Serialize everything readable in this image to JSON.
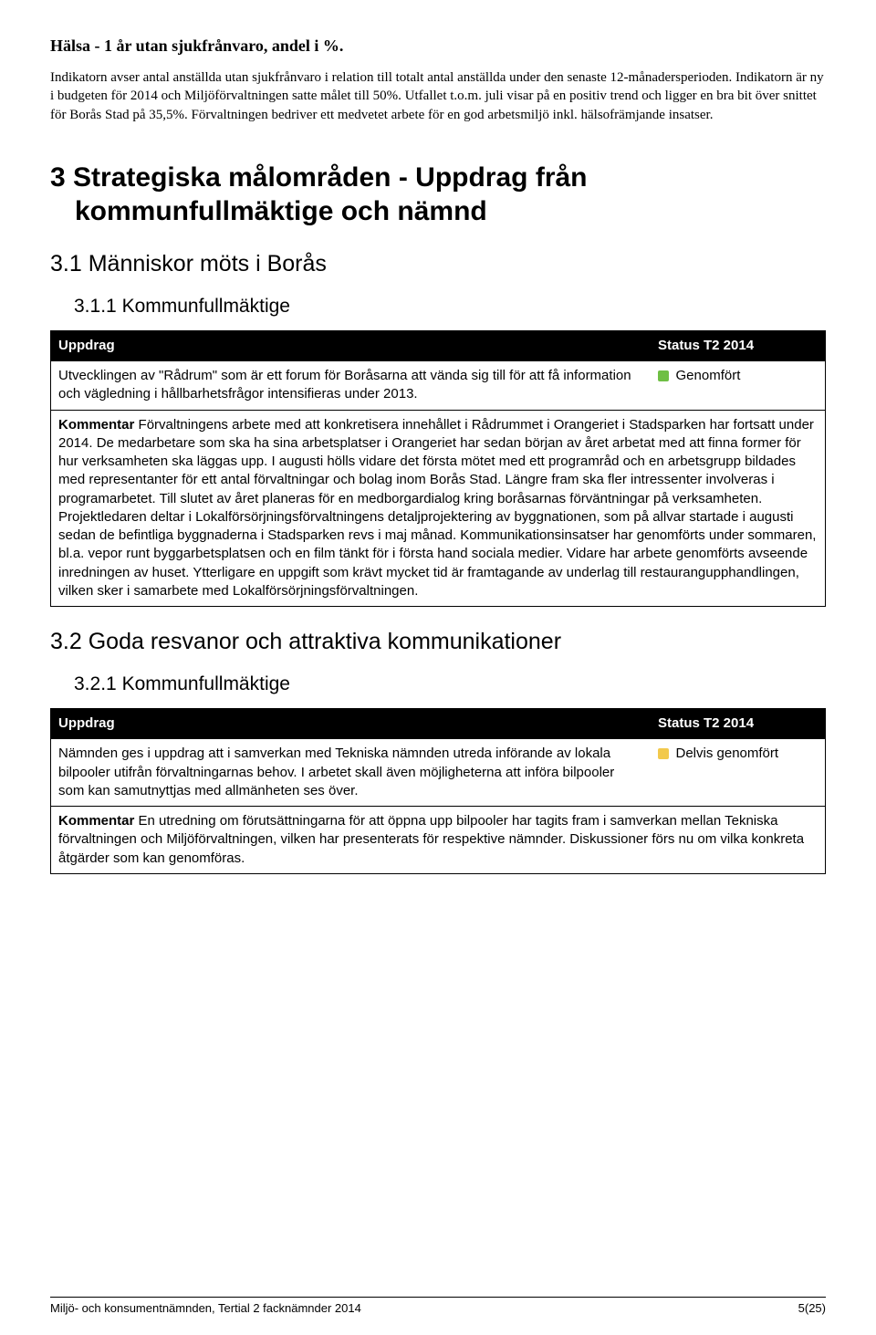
{
  "colors": {
    "green": "#6fbf44",
    "yellow": "#f2c94c",
    "black": "#000000",
    "white": "#ffffff"
  },
  "intro": {
    "heading": "Hälsa - 1 år utan sjukfrånvaro, andel i %.",
    "paragraph": "Indikatorn avser antal anställda utan sjukfrånvaro i relation till totalt antal anställda under den senaste 12-månadersperioden. Indikatorn är ny i budgeten för 2014 och Miljöförvaltningen satte målet till 50%. Utfallet t.o.m. juli visar på en positiv trend och ligger en bra bit över snittet för Borås Stad på 35,5%. Förvaltningen bedriver ett medvetet arbete för en god arbetsmiljö inkl. hälsofrämjande insatser."
  },
  "section3": {
    "num": "3",
    "title_line1": "Strategiska målområden - Uppdrag från",
    "title_line2": "kommunfullmäktige och nämnd"
  },
  "section31": {
    "num": "3.1",
    "title": "Människor möts i Borås"
  },
  "section311": {
    "num": "3.1.1",
    "title": "Kommunfullmäktige"
  },
  "table_headers": {
    "uppdrag": "Uppdrag",
    "status": "Status T2 2014"
  },
  "table1": {
    "task": "Utvecklingen av \"Rådrum\" som är ett forum för Boråsarna att vända sig till för att få information och vägledning i hållbarhetsfrågor intensifieras under 2013.",
    "status_label": "Genomfört",
    "status_color": "#6fbf44",
    "comment_label": "Kommentar",
    "comment": " Förvaltningens arbete med att konkretisera innehållet i Rådrummet i Orangeriet i Stadsparken har fortsatt under 2014. De medarbetare som ska ha sina arbetsplatser i Orangeriet har sedan början av året arbetat med att finna former för hur verksamheten ska läggas upp. I augusti hölls vidare det första mötet med ett programråd och en arbetsgrupp bildades med representanter för ett antal förvaltningar och bolag inom Borås Stad. Längre fram ska fler intressenter involveras i programarbetet. Till slutet av året planeras för en medborgardialog kring boråsarnas förväntningar på verksamheten. Projektledaren deltar i Lokalförsörjningsförvaltningens detaljprojektering av byggnationen, som på allvar startade i augusti sedan de befintliga byggnaderna i Stadsparken revs i maj månad. Kommunikationsinsatser har genomförts under sommaren, bl.a. vepor runt byggarbetsplatsen och en film tänkt för i första hand sociala medier. Vidare har arbete genomförts avseende inredningen av huset. Ytterligare en uppgift som krävt mycket tid är framtagande av underlag till restaurangupphandlingen, vilken sker i samarbete med Lokalförsörjningsförvaltningen."
  },
  "section32": {
    "num": "3.2",
    "title": "Goda resvanor och attraktiva kommunikationer"
  },
  "section321": {
    "num": "3.2.1",
    "title": "Kommunfullmäktige"
  },
  "table2": {
    "task": "Nämnden ges i uppdrag att i samverkan med Tekniska nämnden utreda införande av lokala bilpooler utifrån förvaltningarnas behov. I arbetet skall även möjligheterna att införa bilpooler som kan samutnyttjas med allmänheten ses över.",
    "status_label": "Delvis genomfört",
    "status_color": "#f2c94c",
    "comment_label": "Kommentar",
    "comment": " En utredning om förutsättningarna för att öppna upp bilpooler har tagits fram i samverkan mellan Tekniska förvaltningen och Miljöförvaltningen, vilken har presenterats för respektive nämnder. Diskussioner förs nu om vilka konkreta åtgärder som kan genomföras."
  },
  "footer": {
    "left": "Miljö- och konsumentnämnden, Tertial 2 facknämnder 2014",
    "right": "5(25)"
  }
}
